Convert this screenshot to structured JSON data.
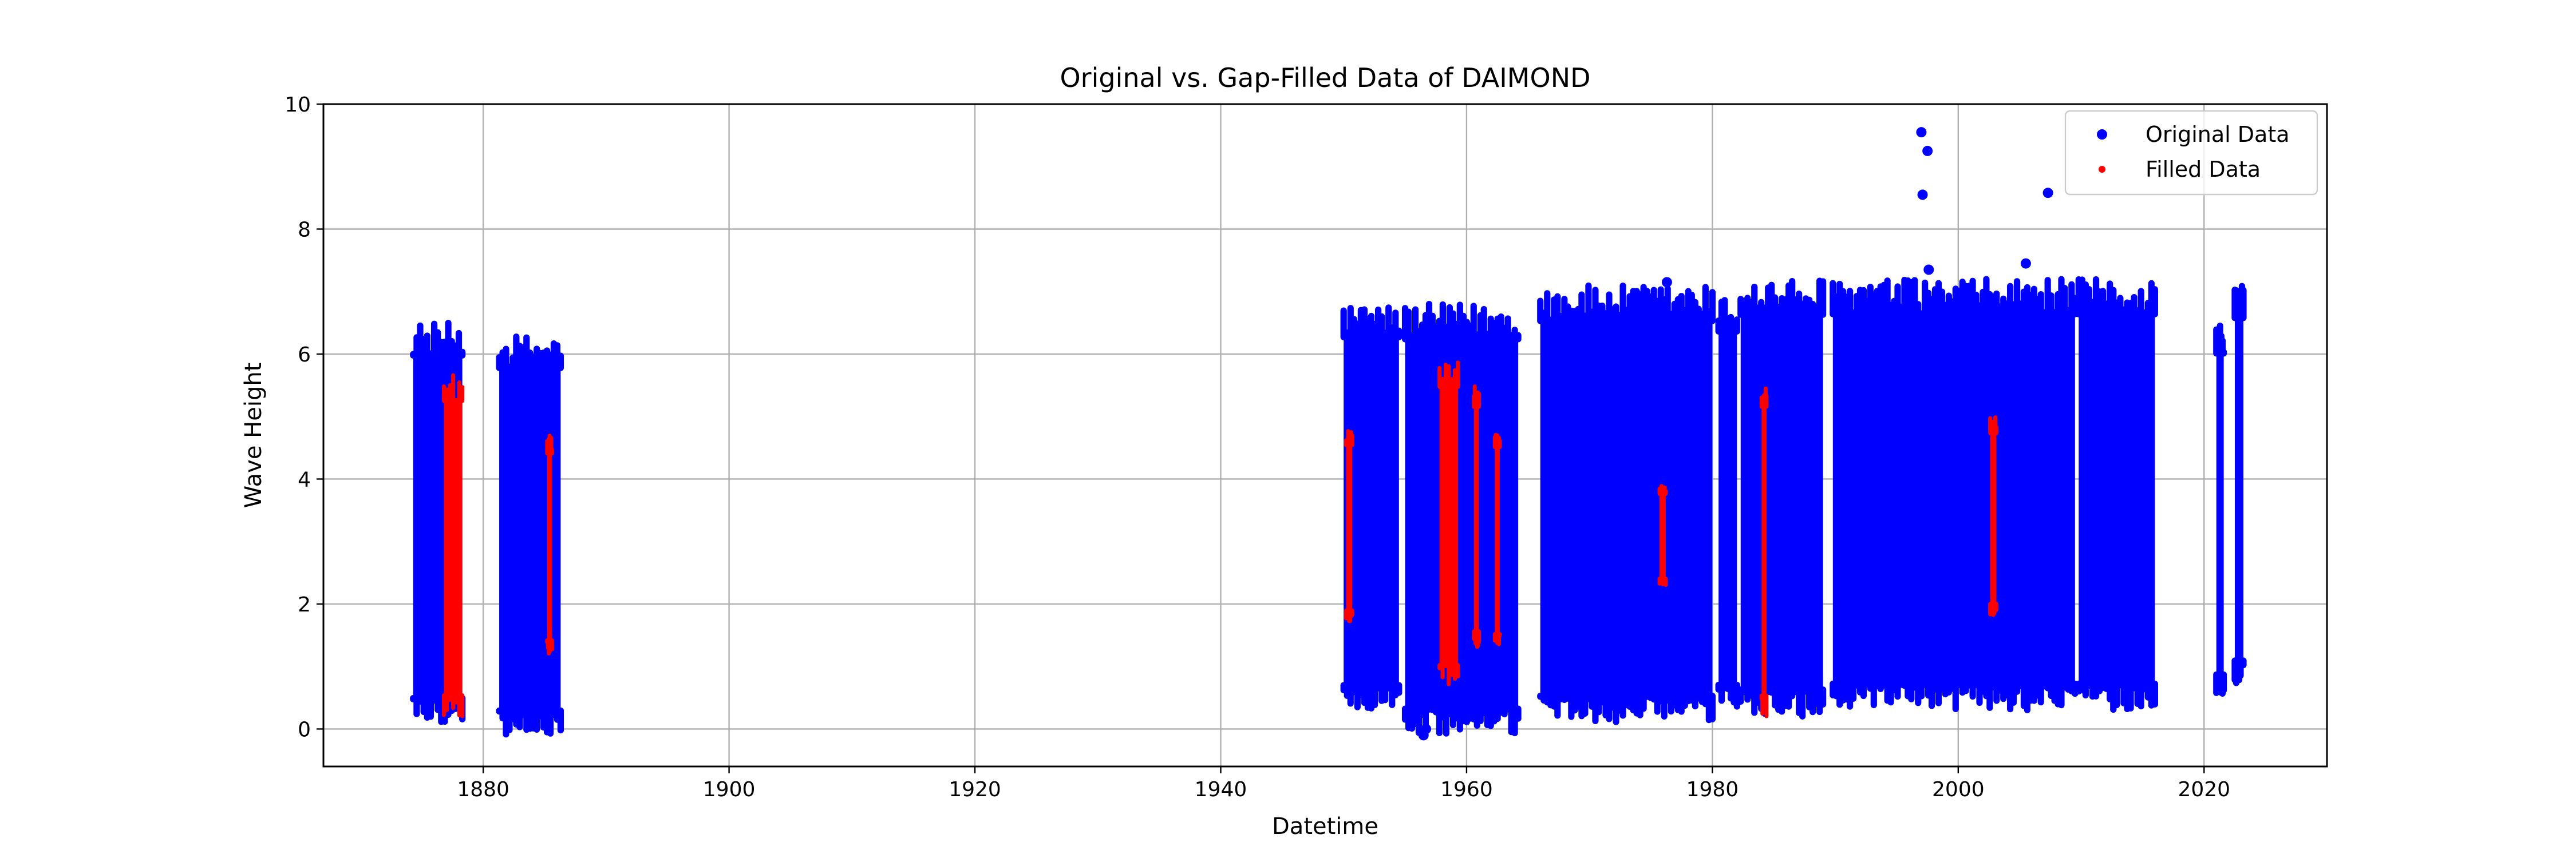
{
  "chart_data": {
    "type": "scatter",
    "title": "Original vs. Gap-Filled Data of DAIMOND",
    "xlabel": "Datetime",
    "ylabel": "Wave Height",
    "xlim": [
      1867,
      2030
    ],
    "ylim": [
      -0.6,
      10
    ],
    "xticks": [
      1880,
      1900,
      1920,
      1940,
      1960,
      1980,
      2000,
      2020
    ],
    "yticks": [
      0,
      2,
      4,
      6,
      8,
      10
    ],
    "grid": true,
    "legend_position": "top-right",
    "series": [
      {
        "name": "Original Data",
        "color": "#0000ff",
        "marker": "large-dot",
        "ranges": [
          {
            "x": [
              1874.3,
              1878.3
            ],
            "y": [
              0.1,
              6.5
            ]
          },
          {
            "x": [
              1881.3,
              1886.3
            ],
            "y": [
              -0.1,
              6.3
            ]
          },
          {
            "x": [
              1950.0,
              1954.5
            ],
            "y": [
              0.3,
              6.8
            ]
          },
          {
            "x": [
              1955.0,
              1964.2
            ],
            "y": [
              -0.1,
              6.8
            ]
          },
          {
            "x": [
              1966.0,
              1980.0
            ],
            "y": [
              0.1,
              7.1
            ]
          },
          {
            "x": [
              1980.5,
              1982.0
            ],
            "y": [
              0.3,
              6.9
            ]
          },
          {
            "x": [
              1982.3,
              1989.0
            ],
            "y": [
              0.2,
              7.2
            ]
          },
          {
            "x": [
              1989.8,
              2009.5
            ],
            "y": [
              0.3,
              7.2
            ]
          },
          {
            "x": [
              2009.8,
              2016.0
            ],
            "y": [
              0.3,
              7.2
            ]
          },
          {
            "x": [
              2021.0,
              2021.6
            ],
            "y": [
              0.5,
              6.5
            ]
          },
          {
            "x": [
              2022.5,
              2023.2
            ],
            "y": [
              0.7,
              7.1
            ]
          }
        ],
        "outliers": [
          {
            "x": 1997.0,
            "y": 9.55
          },
          {
            "x": 1997.5,
            "y": 9.25
          },
          {
            "x": 1997.1,
            "y": 8.55
          },
          {
            "x": 2007.3,
            "y": 8.58
          },
          {
            "x": 1997.6,
            "y": 7.35
          },
          {
            "x": 2005.5,
            "y": 7.45
          },
          {
            "x": 1976.3,
            "y": 7.15
          },
          {
            "x": 1956.5,
            "y": -0.1
          },
          {
            "x": 1956.7,
            "y": 0.0
          }
        ]
      },
      {
        "name": "Filled Data",
        "color": "#ff0000",
        "marker": "small-dot",
        "ranges": [
          {
            "x": [
              1876.8,
              1878.3
            ],
            "y": [
              0.2,
              5.7
            ]
          },
          {
            "x": [
              1885.2,
              1885.6
            ],
            "y": [
              1.2,
              4.7
            ]
          },
          {
            "x": [
              1950.2,
              1950.7
            ],
            "y": [
              1.7,
              4.8
            ]
          },
          {
            "x": [
              1957.8,
              1959.3
            ],
            "y": [
              0.7,
              5.9
            ]
          },
          {
            "x": [
              1960.6,
              1961.0
            ],
            "y": [
              1.3,
              5.5
            ]
          },
          {
            "x": [
              1962.3,
              1962.7
            ],
            "y": [
              1.3,
              4.8
            ]
          },
          {
            "x": [
              1975.7,
              1976.2
            ],
            "y": [
              2.3,
              3.9
            ]
          },
          {
            "x": [
              1984.0,
              1984.4
            ],
            "y": [
              0.2,
              5.6
            ]
          },
          {
            "x": [
              2002.6,
              2003.1
            ],
            "y": [
              1.8,
              5.0
            ]
          }
        ]
      }
    ]
  }
}
